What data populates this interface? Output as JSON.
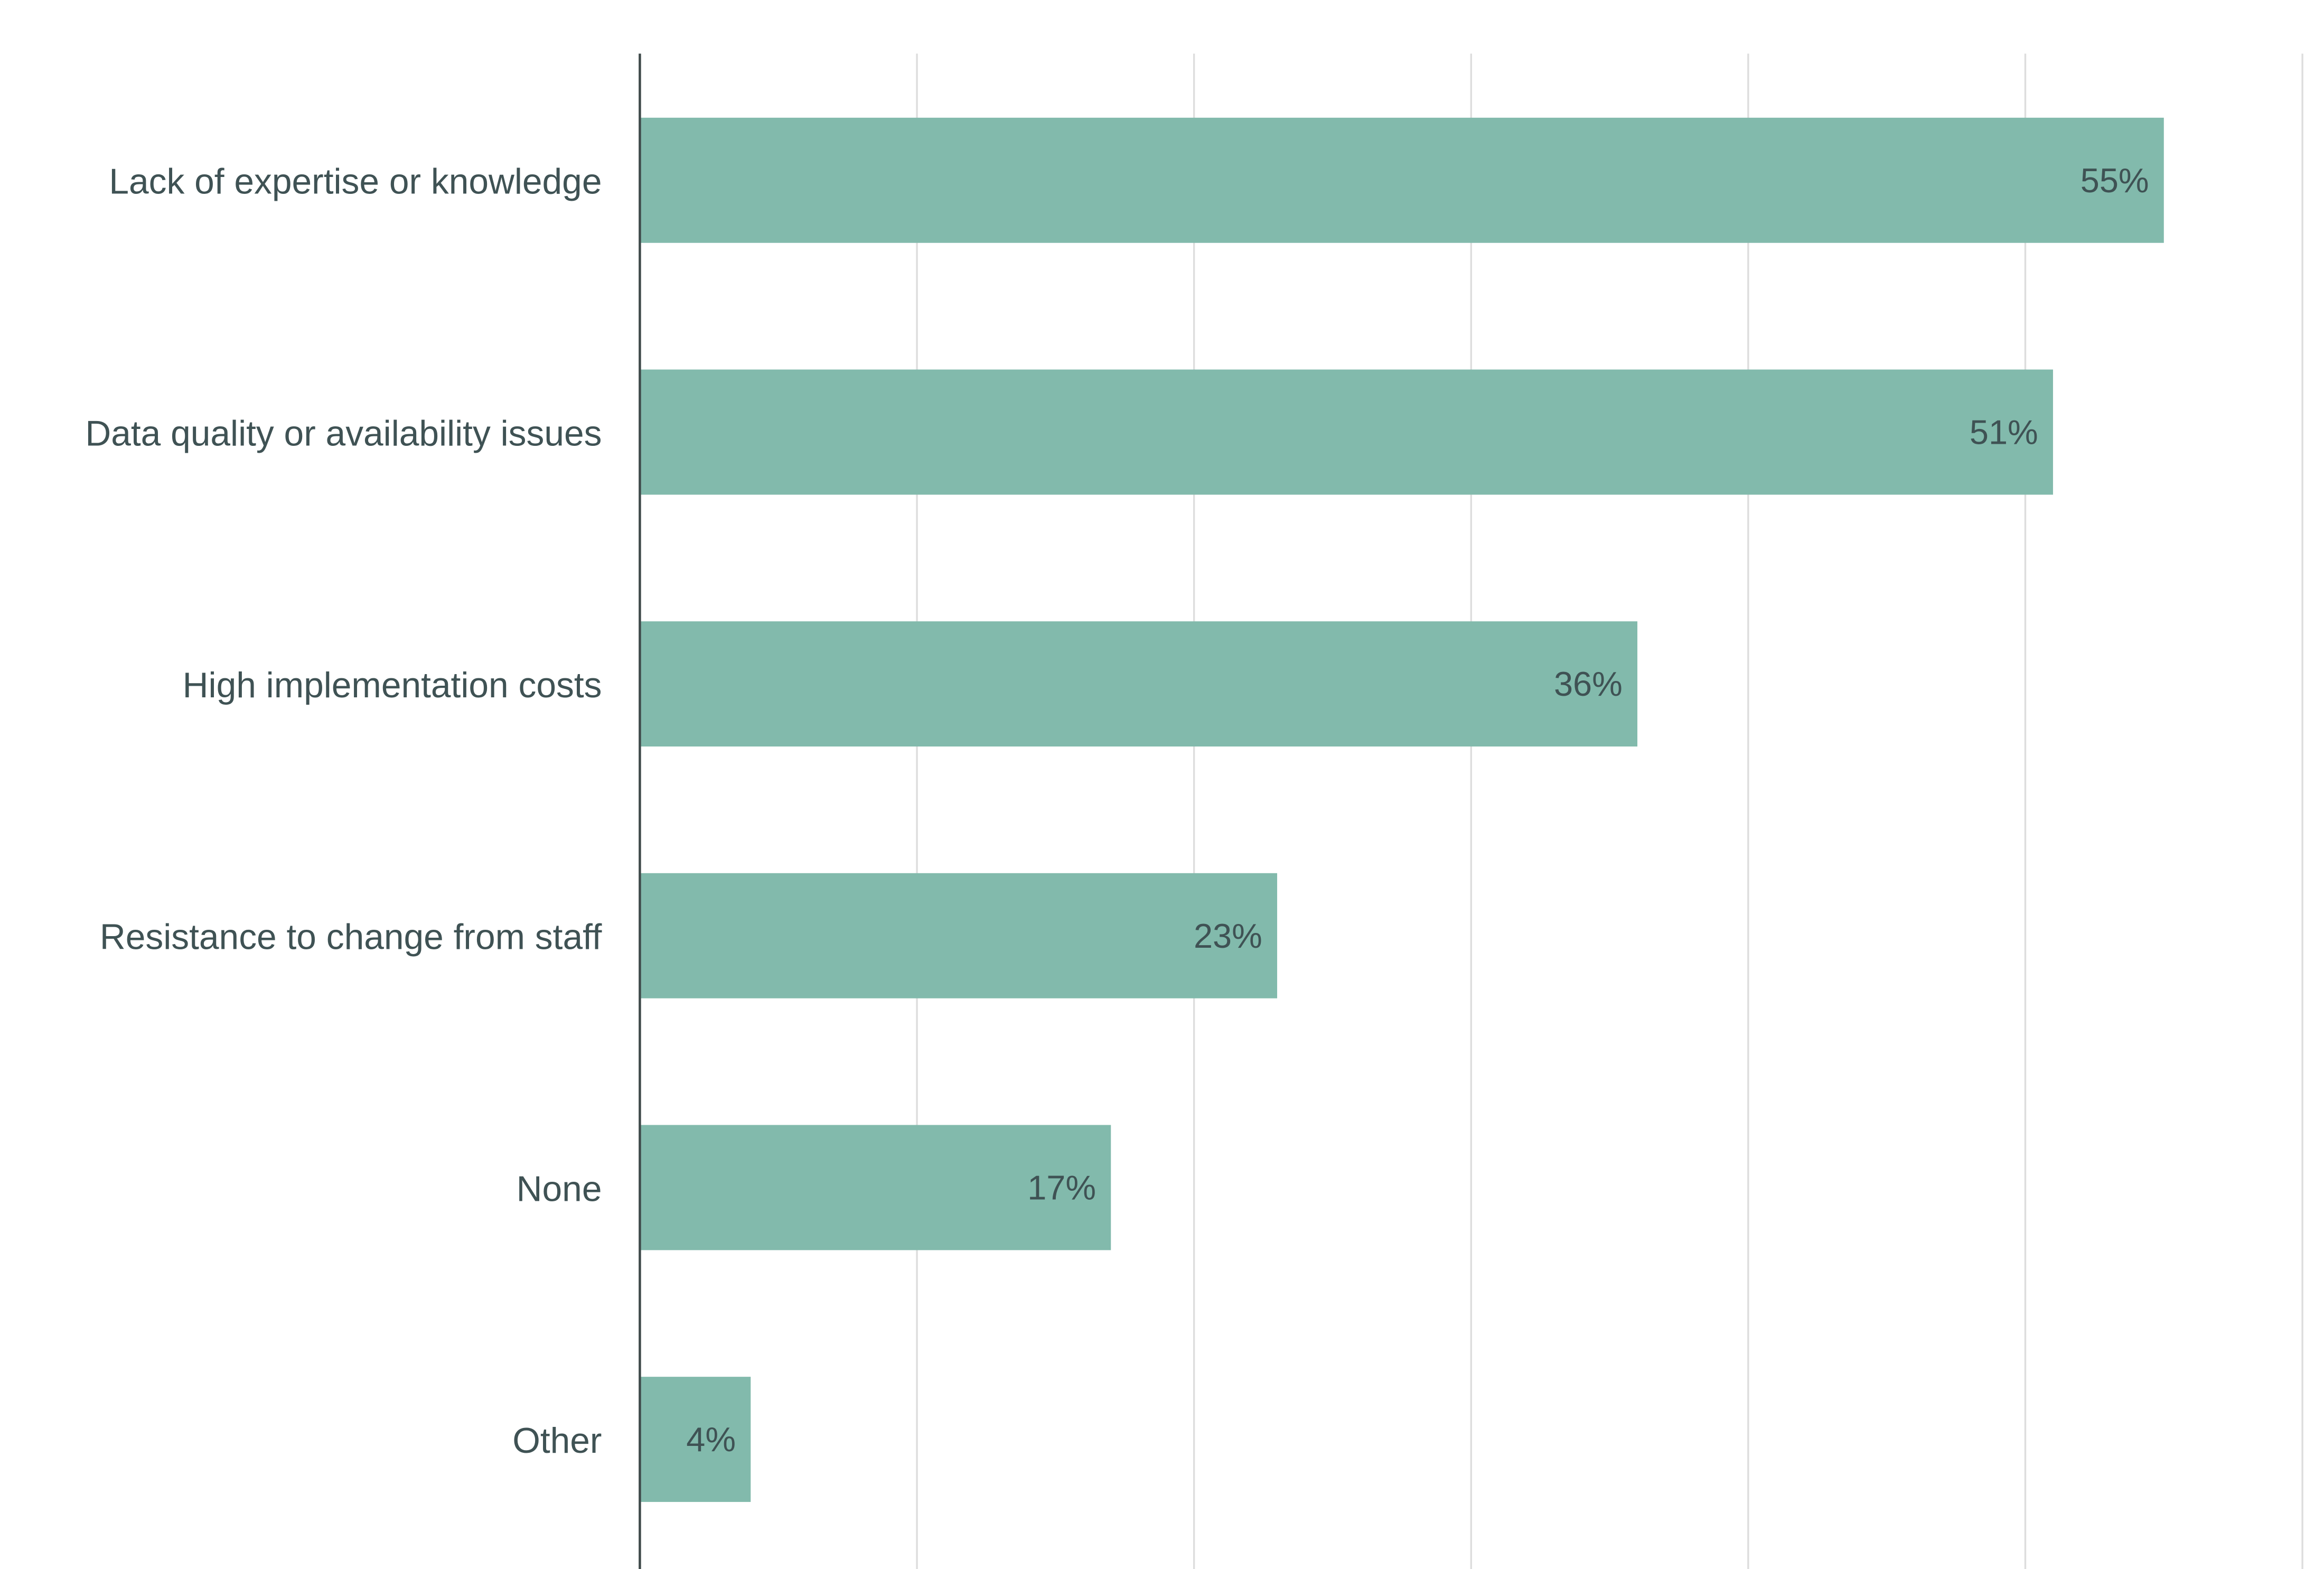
{
  "chart_data": {
    "type": "bar",
    "orientation": "horizontal",
    "categories": [
      "Lack of expertise or knowledge",
      "Data quality or availability issues",
      "High implementation costs",
      "Resistance to change from staff",
      "None",
      "Other"
    ],
    "values": [
      55,
      51,
      36,
      23,
      17,
      4
    ],
    "data_labels": [
      "55%",
      "51%",
      "36%",
      "23%",
      "17%",
      "4%"
    ],
    "xlim": [
      0,
      60
    ],
    "grid": true,
    "grid_step": 10,
    "bar_color": "#82BAAC",
    "text_color": "#3F5254",
    "grid_color": "#DDDDDD"
  }
}
